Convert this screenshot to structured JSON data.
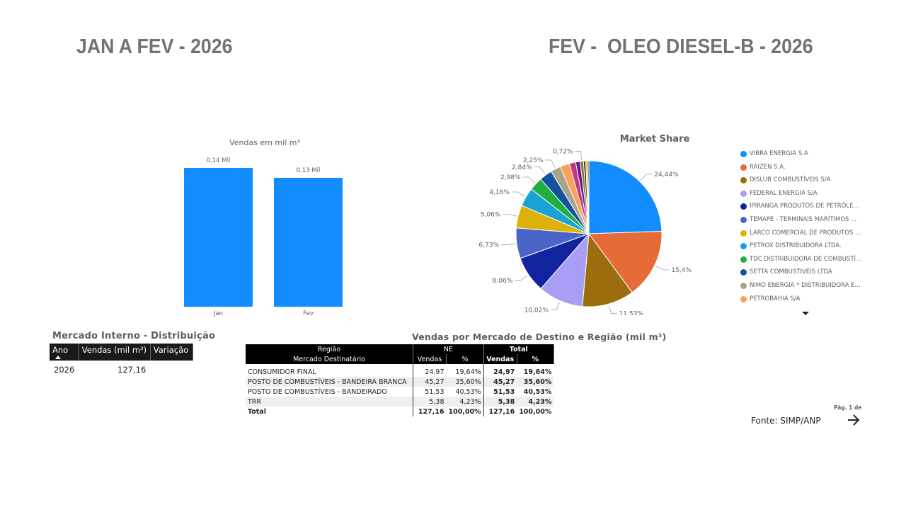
{
  "header": {
    "left_title": "JAN A FEV - 2026",
    "right_title": "FEV -  OLEO DIESEL-B - 2026"
  },
  "colors": {
    "bar": "#118dff",
    "table_header": "#000000"
  },
  "chart_data": [
    {
      "type": "bar",
      "title": "Vendas  em mil m³",
      "categories": [
        "Jan",
        "Fev"
      ],
      "values": [
        0.14,
        0.13
      ],
      "data_labels": [
        "0,14 Mil",
        "0,13 Mil"
      ],
      "ylim": [
        0,
        0.14
      ],
      "grid": false
    },
    {
      "type": "pie",
      "title": "Market Share",
      "legend_position": "right",
      "slices": [
        {
          "name": "VIBRA ENERGIA S.A",
          "value": 24.44,
          "label": "24,44%",
          "color": "#118dff"
        },
        {
          "name": "RAIZEN S.A.",
          "value": 15.4,
          "label": "15,4%",
          "color": "#e66c37"
        },
        {
          "name": "DISLUB COMBUSTÍVEIS S/A",
          "value": 11.53,
          "label": "11,53%",
          "color": "#9c6d0c"
        },
        {
          "name": "FEDERAL ENERGIA S/A",
          "value": 10.02,
          "label": "10,02%",
          "color": "#a99ef5"
        },
        {
          "name": "IPIRANGA PRODUTOS DE PETRÓLE...",
          "value": 8.06,
          "label": "8,06%",
          "color": "#12239e"
        },
        {
          "name": "TEMAPE - TERMINAIS MARÍTIMOS ...",
          "value": 6.73,
          "label": "6,73%",
          "color": "#4a64c8"
        },
        {
          "name": "LARCO COMERCIAL DE PRODUTOS ...",
          "value": 5.06,
          "label": "5,06%",
          "color": "#dcb10a"
        },
        {
          "name": "PETROX DISTRIBUIDORA LTDA.",
          "value": 4.16,
          "label": "4,16%",
          "color": "#1aa1d6"
        },
        {
          "name": "TDC DISTRIBUIDORA DE COMBUSTÍ...",
          "value": 2.98,
          "label": "2,98%",
          "color": "#1fae3f"
        },
        {
          "name": "SETTA COMBUSTIVEIS LTDA",
          "value": 2.84,
          "label": "2,84%",
          "color": "#14529e"
        },
        {
          "name": "NIMO ENERGIA * DISTRIBUIDORA E...",
          "value": 2.25,
          "label": "2,25%",
          "color": "#a8a48c"
        },
        {
          "name": "PETROBAHIA S/A",
          "value": 2.1,
          "label": "",
          "color": "#f7a15d"
        },
        {
          "name": "",
          "value": 1.4,
          "label": "",
          "color": "#c23680"
        },
        {
          "name": "",
          "value": 1.0,
          "label": "",
          "color": "#6a1a8a"
        },
        {
          "name": "",
          "value": 0.72,
          "label": "0,72%",
          "color": "#8a7a30"
        },
        {
          "name": "",
          "value": 0.5,
          "label": "",
          "color": "#333333"
        },
        {
          "name": "",
          "value": 0.4,
          "label": "",
          "color": "#e0b800"
        },
        {
          "name": "",
          "value": 0.3,
          "label": "",
          "color": "#7a3f00"
        }
      ]
    },
    {
      "type": "table",
      "title": "Mercado Interno - Distribuição",
      "columns": [
        "Ano",
        "Vendas (mil m³)",
        "Variação"
      ],
      "rows": [
        [
          "2026",
          "127,16",
          ""
        ]
      ]
    },
    {
      "type": "table",
      "title": "Vendas por Mercado de Destino e Região (mil m³)",
      "header_row1": [
        "Região",
        "NE",
        "Total"
      ],
      "header_row2": [
        "Mercado Destinatário",
        "Vendas",
        "%",
        "Vendas",
        "%"
      ],
      "rows": [
        [
          "CONSUMIDOR FINAL",
          "24,97",
          "19,64%",
          "24,97",
          "19,64%"
        ],
        [
          "POSTO DE COMBUSTÍVEIS - BANDEIRA BRANCA",
          "45,27",
          "35,60%",
          "45,27",
          "35,60%"
        ],
        [
          "POSTO DE COMBUSTÍVEIS - BANDEIRADO",
          "51,53",
          "40,53%",
          "51,53",
          "40,53%"
        ],
        [
          "TRR",
          "5,38",
          "4,23%",
          "5,38",
          "4,23%"
        ]
      ],
      "total": [
        "Total",
        "127,16",
        "100,00%",
        "127,16",
        "100,00%"
      ]
    }
  ],
  "footer": {
    "page_label": "Pág. 1 de",
    "source": "Fonte: SIMP/ANP",
    "next_icon": "arrow-right-icon"
  }
}
